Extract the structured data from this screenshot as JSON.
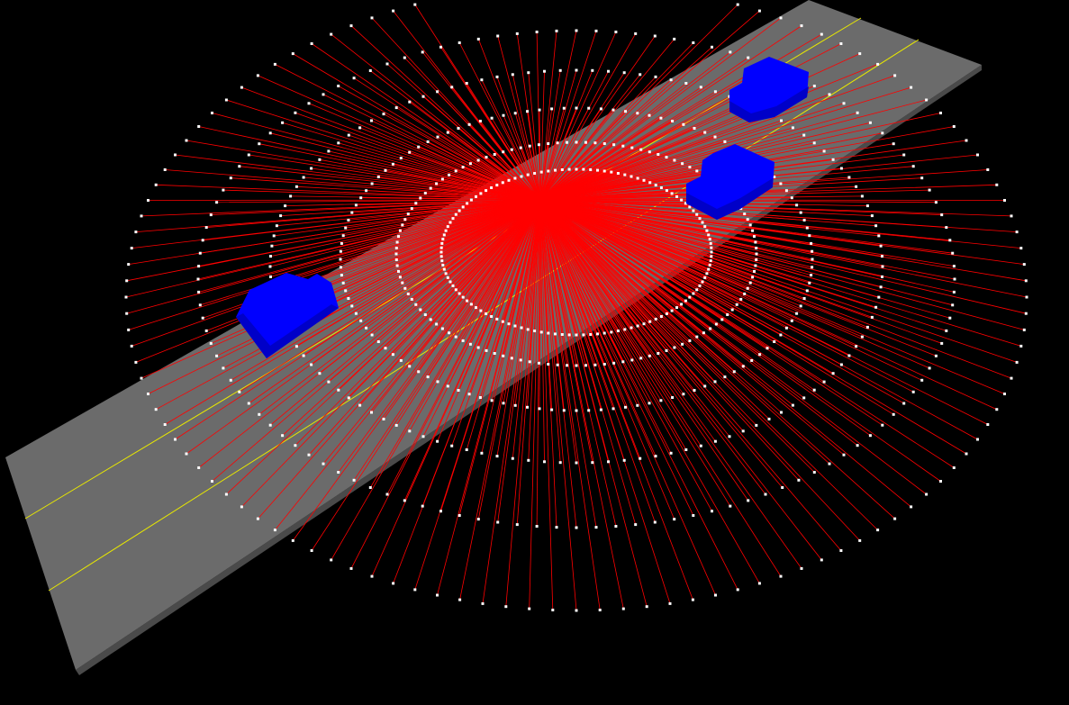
{
  "scene": {
    "background_color": "#000000",
    "road": {
      "surface_color": "#6b6b6b",
      "edge_color": "#4a4a4a",
      "lane_line_color": "#e8e800",
      "lane_line_count": 2
    },
    "vehicles": [
      {
        "name": "vehicle-near-left",
        "color": "#0000ff"
      },
      {
        "name": "vehicle-far-right",
        "color": "#0000ff"
      },
      {
        "name": "vehicle-mid-right",
        "color": "#0000ff"
      }
    ],
    "lidar": {
      "ray_color": "#ff0000",
      "point_color": "#ffffff",
      "ring_count": 6,
      "rays_per_ring": 120
    }
  }
}
